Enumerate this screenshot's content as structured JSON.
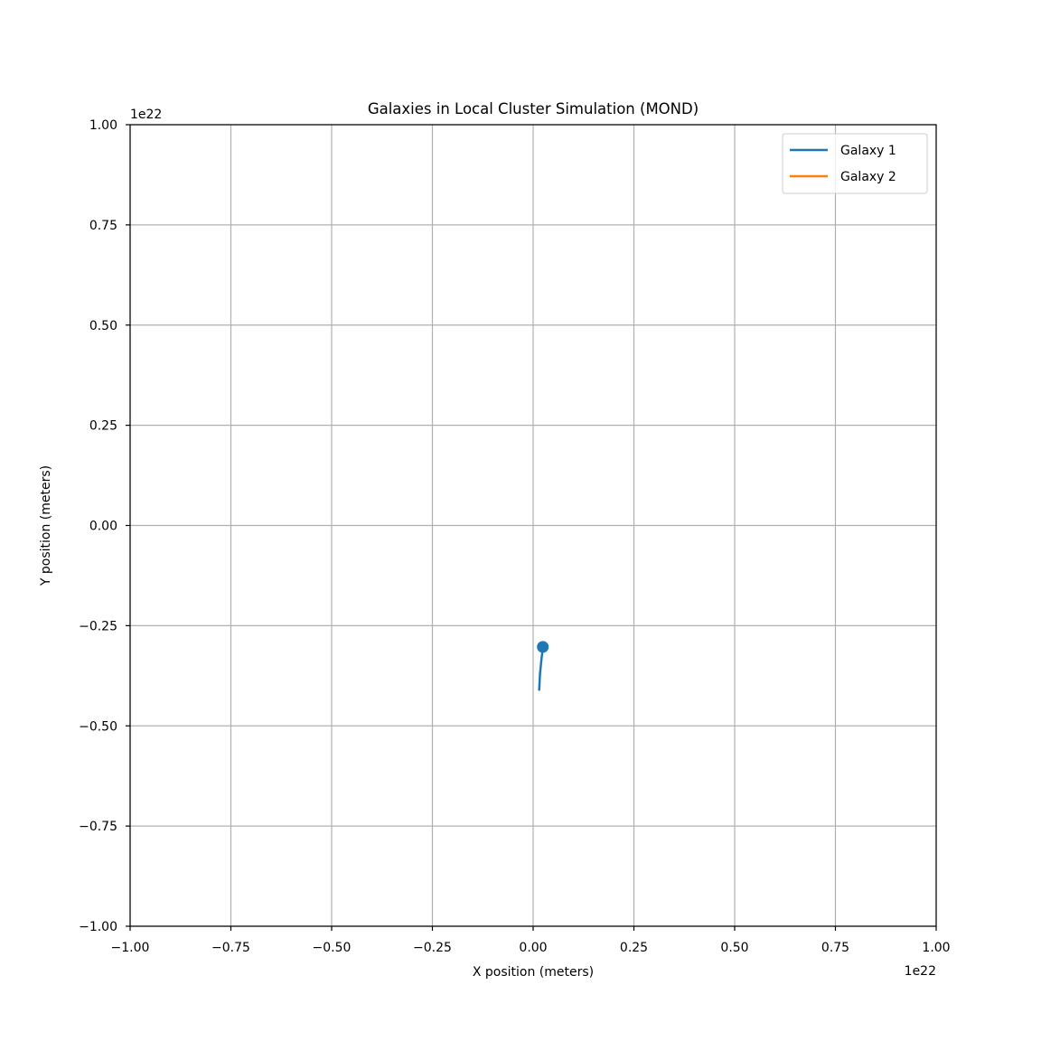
{
  "chart_data": {
    "type": "line",
    "title": "Galaxies in Local Cluster Simulation (MOND)",
    "xlabel": "X position (meters)",
    "ylabel": "Y position (meters)",
    "x_offset_label": "1e22",
    "y_offset_label": "1e22",
    "xlim": [
      -1.0,
      1.0
    ],
    "ylim": [
      -1.0,
      1.0
    ],
    "x_scale_factor": 1e+22,
    "y_scale_factor": 1e+22,
    "xticks": [
      -1.0,
      -0.75,
      -0.5,
      -0.25,
      0.0,
      0.25,
      0.5,
      0.75,
      1.0
    ],
    "yticks": [
      -1.0,
      -0.75,
      -0.5,
      -0.25,
      0.0,
      0.25,
      0.5,
      0.75,
      1.0
    ],
    "xtick_labels": [
      "−1.00",
      "−0.75",
      "−0.50",
      "−0.25",
      "0.00",
      "0.25",
      "0.50",
      "0.75",
      "1.00"
    ],
    "ytick_labels": [
      "−1.00",
      "−0.75",
      "−0.50",
      "−0.25",
      "0.00",
      "0.25",
      "0.50",
      "0.75",
      "1.00"
    ],
    "grid": true,
    "legend_position": "top-right",
    "series": [
      {
        "name": "Galaxy 1",
        "color": "#1f77b4",
        "x": [
          0.015,
          0.016,
          0.017,
          0.019,
          0.021,
          0.023,
          0.024
        ],
        "y": [
          -0.41,
          -0.39,
          -0.37,
          -0.35,
          -0.33,
          -0.315,
          -0.303
        ],
        "marker_at_last": true
      },
      {
        "name": "Galaxy 2",
        "color": "#ff7f0e",
        "x": [],
        "y": [],
        "marker_at_last": false
      }
    ]
  }
}
